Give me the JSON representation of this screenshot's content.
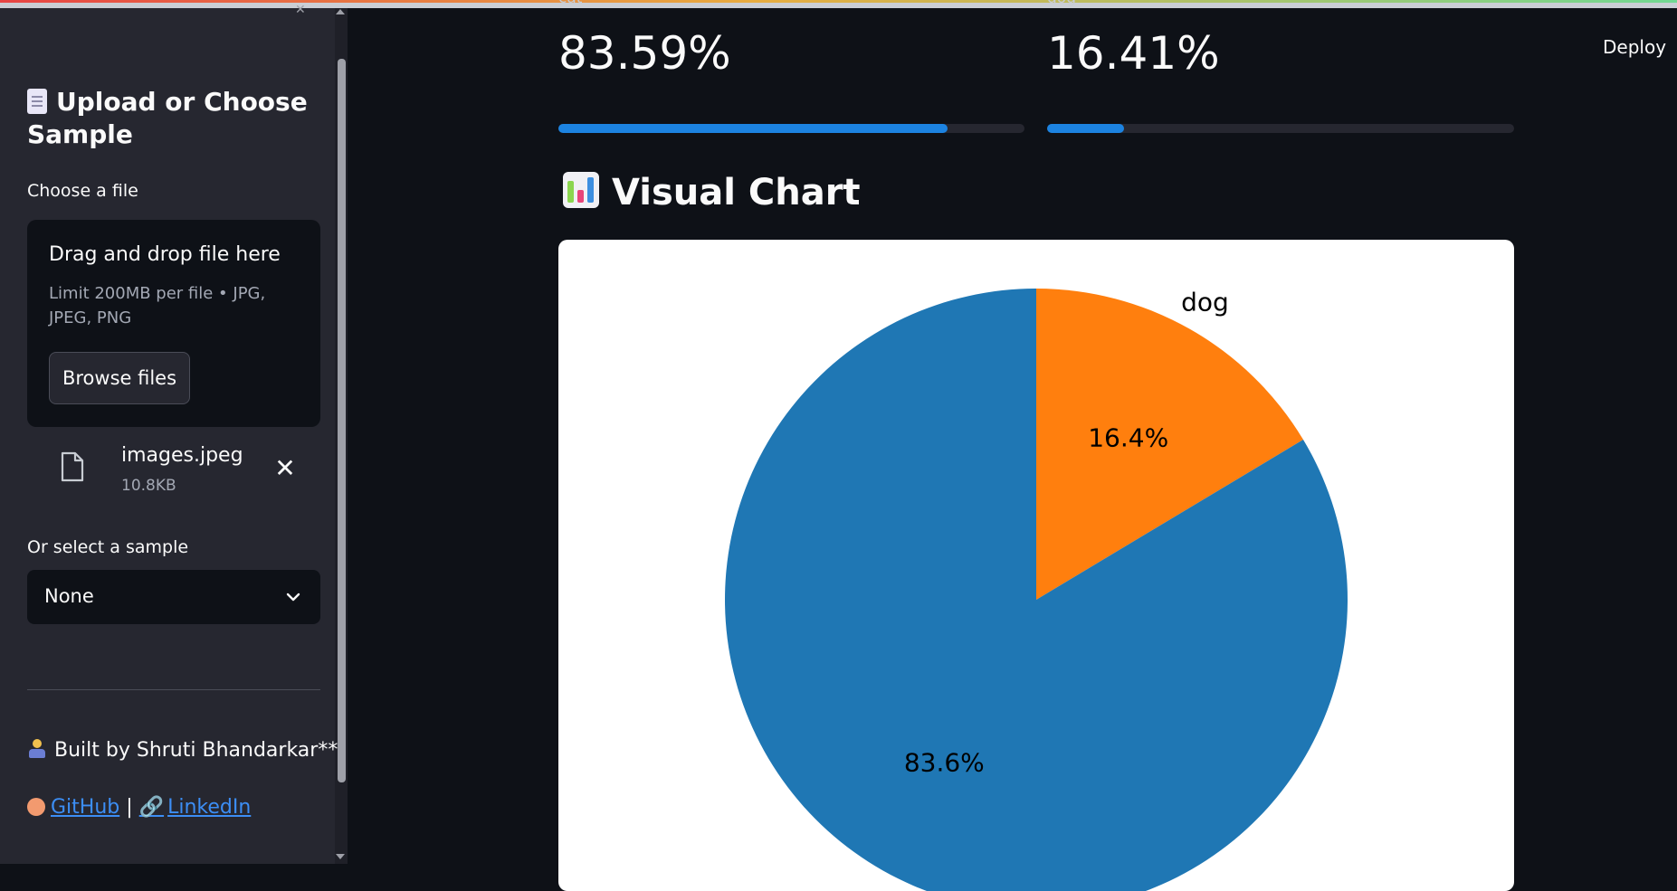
{
  "sidebar": {
    "heading": "Upload or Choose Sample",
    "choose_file_label": "Choose a file",
    "dropzone": {
      "title": "Drag and drop file here",
      "limit": "Limit 200MB per file • JPG, JPEG, PNG",
      "browse_label": "Browse files"
    },
    "uploaded_file": {
      "name": "images.jpeg",
      "size": "10.8KB"
    },
    "sample_label": "Or select a sample",
    "sample_select": {
      "value": "None"
    },
    "credit": "Built by Shruti Bhandarkar**",
    "links": {
      "github": "GitHub",
      "separator": "|",
      "linkedin": "LinkedIn"
    }
  },
  "header": {
    "deploy_label": "Deploy"
  },
  "metrics": [
    {
      "label": "cat",
      "value": "83.59%",
      "fraction": 0.8359
    },
    {
      "label": "dog",
      "value": "16.41%",
      "fraction": 0.1641
    }
  ],
  "section_title": "Visual Chart",
  "colors": {
    "accent": "#1c83e1",
    "cat": "#1f77b4",
    "dog": "#ff7f0e",
    "link": "#3c8ef5"
  },
  "chart_data": {
    "type": "pie",
    "slices": [
      {
        "label": "dog",
        "value": 16.4,
        "pct_label": "16.4%",
        "color": "#ff7f0e",
        "show_label": true
      },
      {
        "label": "cat",
        "value": 83.6,
        "pct_label": "83.6%",
        "color": "#1f77b4",
        "show_label": false
      }
    ],
    "start_angle_deg": 90,
    "direction": "clockwise"
  }
}
